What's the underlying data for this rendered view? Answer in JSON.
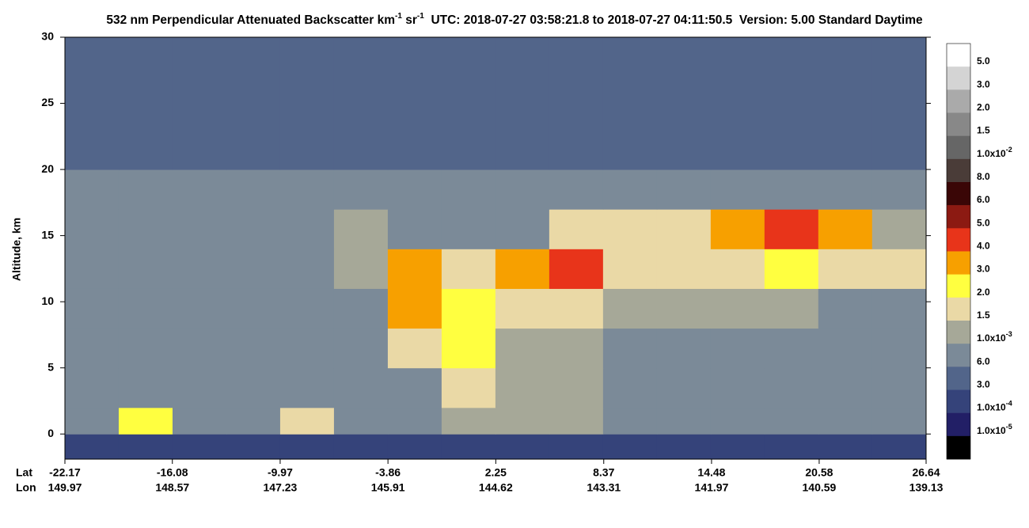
{
  "chart_data": {
    "type": "curtain",
    "title_parts": [
      "532 nm Perpendicular Attenuated Backscatter km",
      "-1",
      " sr",
      "-1",
      "  UTC: 2018-07-27 03:58:21.8 to 2018-07-27 04:11:50.5  Version: 5.00 Standard Daytime"
    ],
    "ylabel": "Altitude, km",
    "ylim": [
      -1.9,
      30
    ],
    "yticks": [
      0,
      5,
      10,
      15,
      20,
      25,
      30
    ],
    "xlim": [
      -22.17,
      26.64
    ],
    "lat_label": "Lat",
    "lon_label": "Lon",
    "xticks": [
      -22.17,
      -16.08,
      -9.97,
      -3.86,
      2.25,
      8.37,
      14.48,
      20.58,
      26.64
    ],
    "lon_ticks": [
      149.97,
      148.57,
      147.23,
      145.91,
      144.62,
      143.31,
      141.97,
      140.59,
      139.13
    ],
    "lat_edges": [
      -22.17,
      -19.12,
      -16.07,
      -13.02,
      -9.97,
      -6.92,
      -3.87,
      -0.82,
      2.23,
      5.28,
      8.33,
      11.38,
      14.43,
      17.48,
      20.53,
      23.58,
      26.64
    ],
    "alt_edges": [
      -1.9,
      0,
      2,
      5,
      8,
      11,
      14,
      17,
      20,
      30
    ],
    "z": [
      [
        0.0001,
        0.0001,
        0.0001,
        0.0001,
        0.0001,
        0.0001,
        0.0001,
        0.0001,
        0.0001,
        0.0001,
        0.0001,
        0.0001,
        0.0001,
        0.0001,
        0.0001,
        0.0001
      ],
      [
        0.0006,
        0.002,
        0.0006,
        0.0006,
        0.0015,
        0.0006,
        0.0006,
        0.001,
        0.001,
        0.001,
        0.0006,
        0.0006,
        0.0006,
        0.0006,
        0.0006,
        0.0006
      ],
      [
        0.0006,
        0.0006,
        0.0006,
        0.0006,
        0.0006,
        0.0006,
        0.0006,
        0.0015,
        0.001,
        0.001,
        0.0006,
        0.0006,
        0.0006,
        0.0006,
        0.0006,
        0.0006
      ],
      [
        0.0006,
        0.0006,
        0.0006,
        0.0006,
        0.0006,
        0.0006,
        0.0015,
        0.002,
        0.001,
        0.001,
        0.0006,
        0.0006,
        0.0006,
        0.0006,
        0.0006,
        0.0006
      ],
      [
        0.0006,
        0.0006,
        0.0006,
        0.0006,
        0.0006,
        0.0006,
        0.003,
        0.002,
        0.0015,
        0.0015,
        0.001,
        0.001,
        0.001,
        0.001,
        0.0006,
        0.0006
      ],
      [
        0.0006,
        0.0006,
        0.0006,
        0.0006,
        0.0006,
        0.001,
        0.003,
        0.0015,
        0.003,
        0.004,
        0.0015,
        0.0015,
        0.0015,
        0.002,
        0.0015,
        0.0015
      ],
      [
        0.0006,
        0.0006,
        0.0006,
        0.0006,
        0.0006,
        0.001,
        0.0006,
        0.0006,
        0.0006,
        0.0015,
        0.0015,
        0.0015,
        0.003,
        0.004,
        0.003,
        0.001
      ],
      [
        0.0006,
        0.0006,
        0.0006,
        0.0006,
        0.0006,
        0.0006,
        0.0006,
        0.0006,
        0.0006,
        0.0006,
        0.0006,
        0.0006,
        0.0006,
        0.0006,
        0.0006,
        0.0006
      ],
      [
        0.0003,
        0.0003,
        0.0003,
        0.0003,
        0.0003,
        0.0003,
        0.0003,
        0.0003,
        0.0003,
        0.0003,
        0.0003,
        0.0003,
        0.0003,
        0.0003,
        0.0003,
        0.0003
      ]
    ],
    "colors": [
      "#ffffff",
      "#d4d4d4",
      "#aaaaaa",
      "#888888",
      "#666666",
      "#4a3c38",
      "#3a0606",
      "#8c1a12",
      "#e8341a",
      "#f7a000",
      "#ffff40",
      "#ead9a6",
      "#a6a898",
      "#7b8a98",
      "#52658a",
      "#35437a",
      "#221f66",
      "#000000"
    ],
    "levels": [
      {
        "value": 0.05,
        "label": "5.0"
      },
      {
        "value": 0.03,
        "label": "3.0"
      },
      {
        "value": 0.02,
        "label": "2.0"
      },
      {
        "value": 0.015,
        "label": "1.5"
      },
      {
        "value": 0.01,
        "label": "1.0x10",
        "sup": "-2"
      },
      {
        "value": 0.008,
        "label": "8.0"
      },
      {
        "value": 0.006,
        "label": "6.0"
      },
      {
        "value": 0.005,
        "label": "5.0"
      },
      {
        "value": 0.004,
        "label": "4.0"
      },
      {
        "value": 0.003,
        "label": "3.0"
      },
      {
        "value": 0.002,
        "label": "2.0"
      },
      {
        "value": 0.0015,
        "label": "1.5"
      },
      {
        "value": 0.001,
        "label": "1.0x10",
        "sup": "-3"
      },
      {
        "value": 0.0006,
        "label": "6.0"
      },
      {
        "value": 0.0003,
        "label": "3.0"
      },
      {
        "value": 0.0001,
        "label": "1.0x10",
        "sup": "-4"
      },
      {
        "value": 1e-05,
        "label": "1.0x10",
        "sup": "-5"
      }
    ]
  }
}
